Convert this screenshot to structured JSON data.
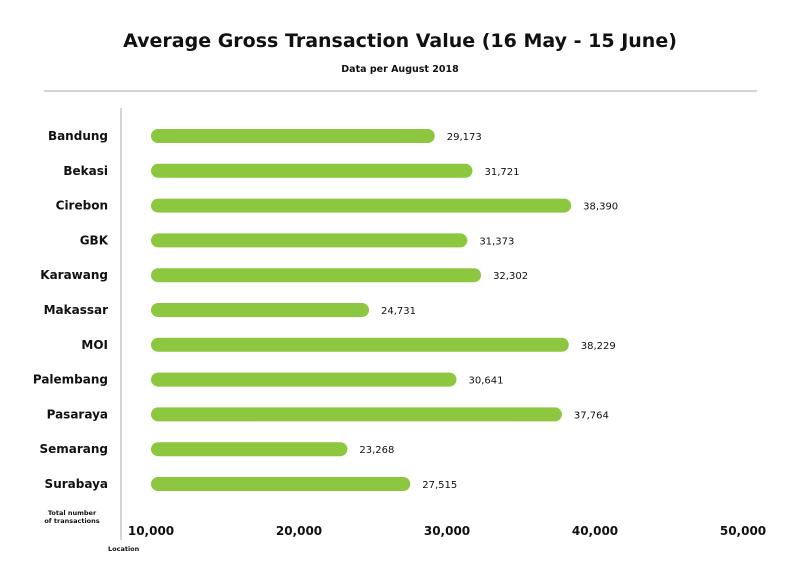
{
  "chart_data": {
    "type": "bar",
    "orientation": "horizontal",
    "title": "Average Gross Transaction Value (16 May - 15 June)",
    "subtitle": "Data per August 2018",
    "xlabel": "Location",
    "ylabel": "Total number of transactions",
    "categories": [
      "Bandung",
      "Bekasi",
      "Cirebon",
      "GBK",
      "Karawang",
      "Makassar",
      "MOI",
      "Palembang",
      "Pasaraya",
      "Semarang",
      "Surabaya"
    ],
    "values": [
      29173,
      31721,
      38390,
      31373,
      32302,
      24731,
      38229,
      30641,
      37764,
      23268,
      27515
    ],
    "value_labels": [
      "29,173",
      "31,721",
      "38,390",
      "31,373",
      "32,302",
      "24,731",
      "38,229",
      "30,641",
      "37,764",
      "23,268",
      "27,515"
    ],
    "xlim": [
      10000,
      50000
    ],
    "xticks": [
      10000,
      20000,
      30000,
      40000,
      50000
    ],
    "xtick_labels": [
      "10,000",
      "20,000",
      "30,000",
      "40,000",
      "50,000"
    ],
    "grid": false,
    "legend": "none",
    "bar_color": "#8dc63f"
  }
}
